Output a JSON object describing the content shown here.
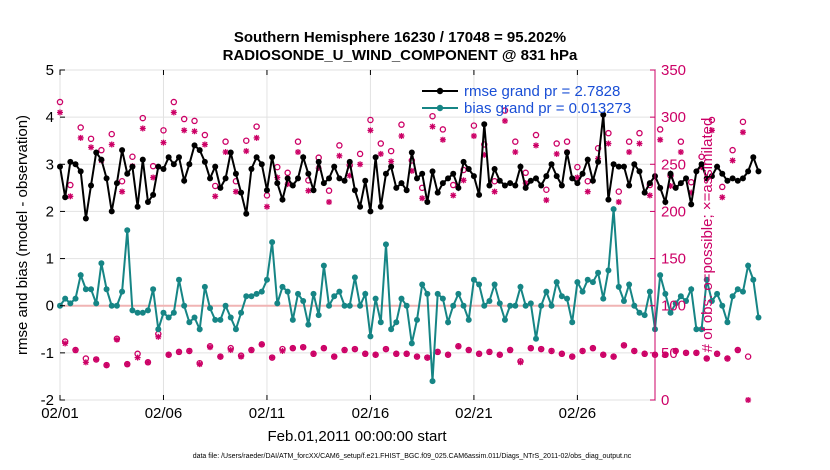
{
  "chart_data": {
    "type": "line",
    "title_line1": "Southern Hemisphere 16230 / 17048 = 95.202%",
    "title_line2": "RADIOSONDE_U_WIND_COMPONENT @ 831 hPa",
    "xlabel": "Feb.01,2011 00:00:00 start",
    "ylabel": "rmse and bias (model - observation)",
    "ylabel_right": "# of obs: o=possible; ×=assimilated",
    "xlim": [
      0,
      28.75
    ],
    "ylim": [
      -2,
      5
    ],
    "ylim_right": [
      0,
      350
    ],
    "x_ticks": [
      0,
      5,
      10,
      15,
      20,
      25
    ],
    "x_tick_labels": [
      "02/01",
      "02/06",
      "02/11",
      "02/16",
      "02/21",
      "02/26"
    ],
    "y_ticks": [
      -2,
      -1,
      0,
      1,
      2,
      3,
      4,
      5
    ],
    "y_tick_labels": [
      "-2",
      "-1",
      "0",
      "1",
      "2",
      "3",
      "4",
      "5"
    ],
    "y_ticks_right": [
      0,
      50,
      100,
      150,
      200,
      250,
      300,
      350
    ],
    "y_tick_labels_right": [
      "0",
      "50",
      "100",
      "150",
      "200",
      "250",
      "300",
      "350"
    ],
    "x_step": 0.25,
    "series": [
      {
        "name": "rmse",
        "legend": "rmse grand pr = 2.7828",
        "color": "#000000",
        "values": [
          2.95,
          2.3,
          3.05,
          3.0,
          2.85,
          1.85,
          2.55,
          3.25,
          3.1,
          2.7,
          2.0,
          2.6,
          3.3,
          2.8,
          2.95,
          2.1,
          3.1,
          2.2,
          2.35,
          2.95,
          2.9,
          3.15,
          3.0,
          3.15,
          2.65,
          3.0,
          3.4,
          3.3,
          3.05,
          2.7,
          2.95,
          2.5,
          2.7,
          3.25,
          2.8,
          2.4,
          1.95,
          2.9,
          3.15,
          3.0,
          2.45,
          3.15,
          2.6,
          2.25,
          2.7,
          2.55,
          2.7,
          3.15,
          2.8,
          2.45,
          3.05,
          2.6,
          2.7,
          2.95,
          2.7,
          2.65,
          3.05,
          2.45,
          2.1,
          2.65,
          2.0,
          3.15,
          2.1,
          2.8,
          2.95,
          2.5,
          2.6,
          2.45,
          3.25,
          2.7,
          2.8,
          2.2,
          2.85,
          2.4,
          2.6,
          2.7,
          2.8,
          2.5,
          3.05,
          2.9,
          2.75,
          2.35,
          3.85,
          2.55,
          2.9,
          2.65,
          2.55,
          2.6,
          2.55,
          2.95,
          2.5,
          2.65,
          2.7,
          2.55,
          2.75,
          3.0,
          2.75,
          2.55,
          3.25,
          2.7,
          2.6,
          2.8,
          3.1,
          2.65,
          3.05,
          4.05,
          2.25,
          3.0,
          2.95,
          2.95,
          2.55,
          3.0,
          2.85,
          2.4,
          2.6,
          2.75,
          2.5,
          2.2,
          2.8,
          2.5,
          2.6,
          2.7,
          2.15,
          2.85,
          3.0,
          2.7,
          2.75,
          2.95,
          2.8,
          2.65,
          2.7,
          2.65,
          2.7,
          2.85,
          3.15,
          2.85
        ]
      },
      {
        "name": "bias",
        "legend": "bias grand pr = 0.013273",
        "color": "#168585",
        "values": [
          0.0,
          0.15,
          0.05,
          0.15,
          0.65,
          0.35,
          0.35,
          0.05,
          0.9,
          0.35,
          0.0,
          0.0,
          0.3,
          1.6,
          -0.1,
          -0.15,
          -0.15,
          -0.1,
          0.35,
          -0.5,
          -0.15,
          -0.25,
          -0.15,
          0.55,
          0.0,
          -0.35,
          -0.25,
          -0.5,
          0.4,
          -0.05,
          -0.3,
          -0.3,
          0.0,
          -0.25,
          -0.5,
          -0.15,
          0.2,
          0.2,
          0.25,
          0.3,
          0.55,
          1.35,
          0.05,
          0.4,
          0.3,
          -0.3,
          0.25,
          0.1,
          -0.4,
          0.25,
          -0.2,
          0.85,
          0.0,
          0.2,
          0.3,
          0.0,
          0.0,
          0.6,
          0.0,
          0.25,
          -0.65,
          0.15,
          -0.35,
          1.3,
          -0.5,
          -0.35,
          0.15,
          0.0,
          -0.8,
          -0.3,
          0.45,
          0.25,
          -1.6,
          0.25,
          0.15,
          -0.35,
          0.0,
          0.25,
          0.0,
          -0.3,
          0.55,
          0.45,
          0.0,
          0.1,
          0.45,
          0.05,
          -0.3,
          0.0,
          0.0,
          0.4,
          0.0,
          0.05,
          -0.7,
          0.0,
          0.3,
          0.0,
          0.5,
          0.2,
          0.15,
          -0.35,
          0.5,
          0.3,
          0.55,
          0.5,
          0.7,
          0.15,
          0.75,
          2.05,
          0.4,
          0.1,
          0.45,
          0.0,
          -0.15,
          -0.2,
          0.3,
          -0.5,
          0.65,
          0.25,
          -0.15,
          0.05,
          0.2,
          0.1,
          0.35,
          -0.5,
          -0.5,
          0.55,
          0.1,
          0.25,
          0.0,
          -0.35,
          0.2,
          0.35,
          0.3,
          0.85,
          0.55,
          -0.25
        ]
      },
      {
        "name": "obs possible",
        "marker": "o",
        "axis": "right",
        "color": "#cc0066",
        "values": [
          316,
          62,
          228,
          53,
          289,
          44,
          277,
          43,
          265,
          37,
          282,
          65,
          232,
          38,
          258,
          49,
          299,
          40,
          248,
          70,
          286,
          48,
          316,
          51,
          298,
          52,
          296,
          39,
          281,
          57,
          227,
          46,
          274,
          55,
          232,
          47,
          275,
          53,
          290,
          59,
          217,
          45,
          247,
          54,
          241,
          55,
          274,
          56,
          233,
          49,
          257,
          55,
          222,
          46,
          270,
          53,
          249,
          54,
          261,
          49,
          297,
          48,
          272,
          54,
          264,
          49,
          292,
          49,
          254,
          46,
          225,
          45,
          301,
          51,
          287,
          48,
          228,
          57,
          244,
          53,
          291,
          49,
          271,
          51,
          232,
          48,
          307,
          53,
          274,
          41,
          241,
          55,
          281,
          54,
          223,
          52,
          272,
          49,
          274,
          46,
          247,
          52,
          232,
          55,
          267,
          48,
          283,
          46,
          221,
          58,
          274,
          52,
          283,
          49,
          228,
          48,
          287,
          48,
          238,
          52,
          274,
          50,
          231,
          50,
          258,
          44,
          297,
          49,
          226,
          44,
          265,
          53,
          295,
          46
        ]
      },
      {
        "name": "obs assimilated",
        "marker": "x",
        "axis": "right",
        "color": "#cc0066",
        "values": [
          305,
          60,
          216,
          53,
          278,
          40,
          268,
          43,
          254,
          37,
          271,
          64,
          221,
          38,
          248,
          45,
          288,
          40,
          236,
          67,
          273,
          48,
          305,
          51,
          286,
          52,
          285,
          38,
          271,
          56,
          216,
          46,
          263,
          53,
          221,
          46,
          264,
          53,
          278,
          59,
          205,
          45,
          236,
          52,
          229,
          55,
          263,
          56,
          222,
          49,
          246,
          55,
          210,
          46,
          259,
          53,
          238,
          54,
          250,
          49,
          286,
          48,
          261,
          54,
          253,
          49,
          280,
          49,
          243,
          46,
          214,
          45,
          290,
          51,
          276,
          48,
          217,
          57,
          233,
          53,
          280,
          49,
          260,
          51,
          221,
          48,
          296,
          53,
          263,
          40,
          230,
          55,
          270,
          54,
          212,
          52,
          261,
          49,
          263,
          46,
          236,
          52,
          221,
          55,
          256,
          48,
          272,
          46,
          210,
          58,
          263,
          52,
          272,
          49,
          217,
          48,
          276,
          48,
          227,
          52,
          263,
          50,
          220,
          50,
          247,
          44,
          286,
          49,
          215,
          44,
          254,
          53,
          284,
          0
        ]
      }
    ],
    "zero_line": 0
  },
  "footnote": "data file: /Users/raeder/DAI/ATM_forcXX/CAM6_setup/f.e21.FHIST_BGC.f09_025.CAM6assim.011/Diags_NTrS_2011-02/obs_diag_output.nc"
}
